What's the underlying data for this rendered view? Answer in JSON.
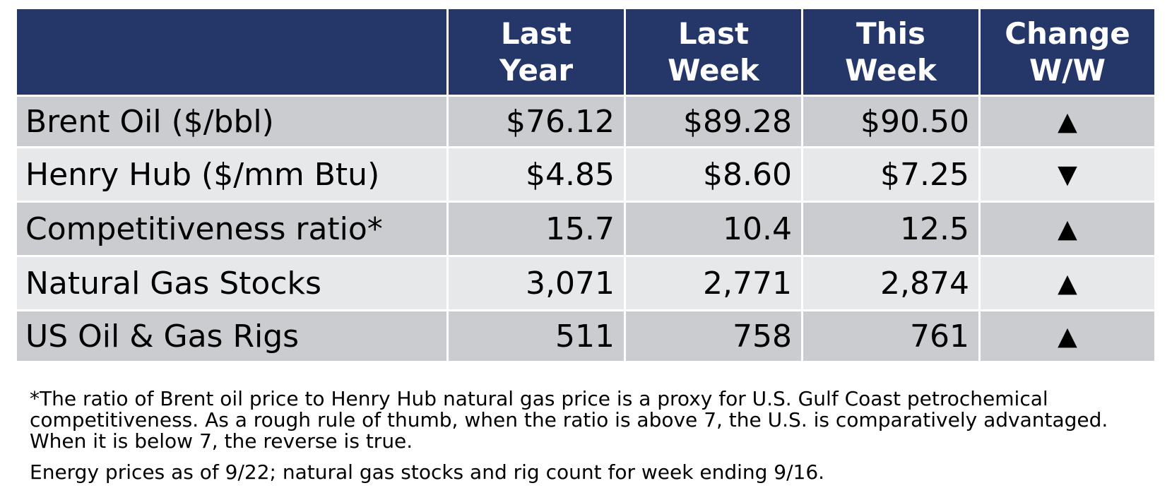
{
  "table": {
    "headers": [
      "",
      "Last\nYear",
      "Last\nWeek",
      "This\nWeek",
      "Change\nW/W"
    ],
    "rows": [
      {
        "label": "Brent Oil ($/bbl)",
        "last_year": "$76.12",
        "last_week": "$89.28",
        "this_week": "$90.50",
        "change": "▲"
      },
      {
        "label": "Henry Hub ($/mm Btu)",
        "last_year": "$4.85",
        "last_week": "$8.60",
        "this_week": "$7.25",
        "change": "▼"
      },
      {
        "label": "Competitiveness ratio*",
        "last_year": "15.7",
        "last_week": "10.4",
        "this_week": "12.5",
        "change": "▲"
      },
      {
        "label": "Natural Gas Stocks",
        "last_year": "3,071",
        "last_week": "2,771",
        "this_week": "2,874",
        "change": "▲"
      },
      {
        "label": "US Oil & Gas Rigs",
        "last_year": "511",
        "last_week": "758",
        "this_week": "761",
        "change": "▲"
      }
    ]
  },
  "colors": {
    "header_bg": "#253668",
    "row_dark": "#cbccd0",
    "row_light": "#e7e8ea"
  },
  "footnote": "*The ratio of Brent oil price to Henry Hub natural gas price is a proxy for U.S. Gulf Coast petrochemical competitiveness. As a rough rule of thumb, when the ratio is above 7, the U.S. is comparatively advantaged. When it is below 7, the reverse is true.",
  "as_of": "Energy prices as of 9/22; natural gas stocks and rig count for week ending 9/16."
}
